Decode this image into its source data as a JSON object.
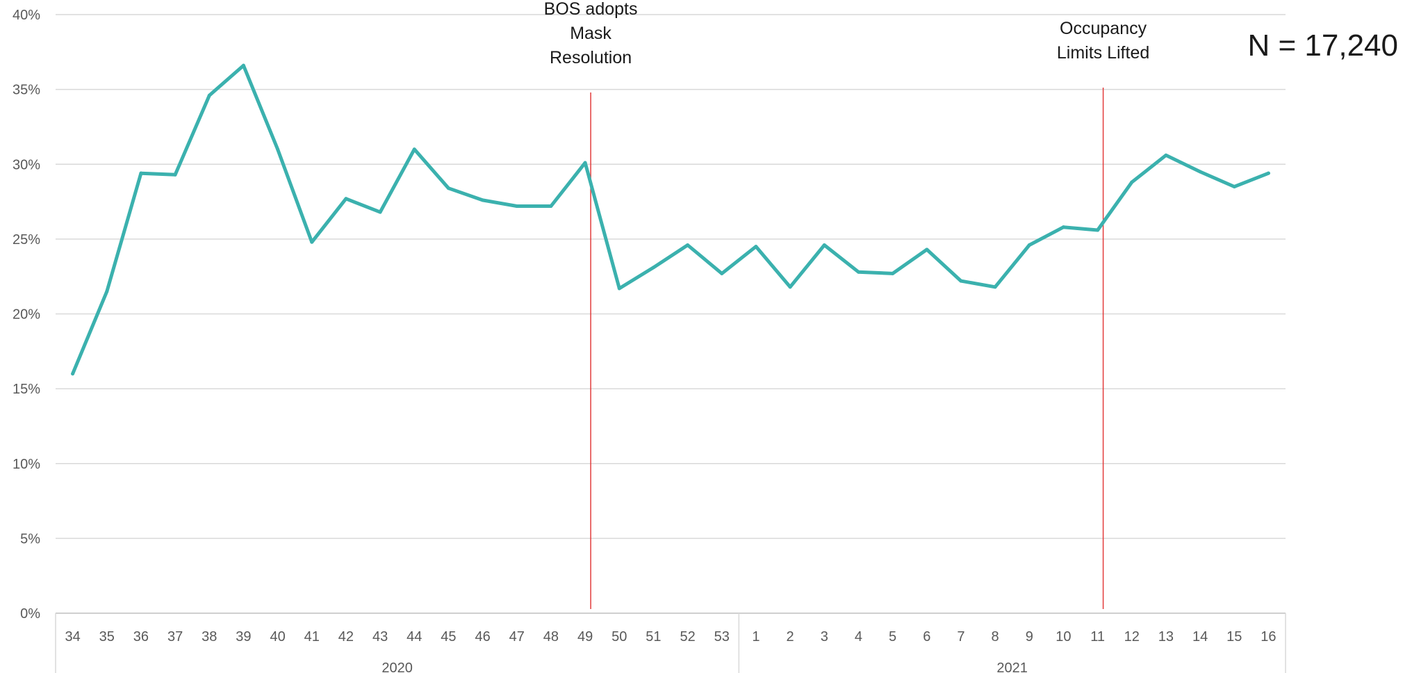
{
  "chart_data": {
    "type": "line",
    "y_ticks": [
      "0%",
      "5%",
      "10%",
      "15%",
      "20%",
      "25%",
      "30%",
      "35%",
      "40%"
    ],
    "ylim": [
      0,
      40
    ],
    "grid": true,
    "categories": [
      "34",
      "35",
      "36",
      "37",
      "38",
      "39",
      "40",
      "41",
      "42",
      "43",
      "44",
      "45",
      "46",
      "47",
      "48",
      "49",
      "50",
      "51",
      "52",
      "53",
      "1",
      "2",
      "3",
      "4",
      "5",
      "6",
      "7",
      "8",
      "9",
      "10",
      "11",
      "12",
      "13",
      "14",
      "15",
      "16"
    ],
    "year_groups": [
      {
        "label": "2020",
        "count": 20
      },
      {
        "label": "2021",
        "count": 16
      }
    ],
    "series": [
      {
        "color": "#3BB1AE",
        "values": [
          16.0,
          21.5,
          29.4,
          29.3,
          34.6,
          36.6,
          31.0,
          24.8,
          27.7,
          26.8,
          31.0,
          28.4,
          27.6,
          27.2,
          27.2,
          30.1,
          21.7,
          23.1,
          24.6,
          22.7,
          24.5,
          21.8,
          24.6,
          22.8,
          22.7,
          24.3,
          22.2,
          21.8,
          24.6,
          25.8,
          25.6,
          28.8,
          30.6,
          29.5,
          28.5,
          29.4
        ]
      }
    ],
    "annotations": [
      {
        "lines": [
          "BOS adopts",
          "Mask",
          "Resolution"
        ],
        "category_index": 15,
        "color": "#E23B3B"
      },
      {
        "lines": [
          "Occupancy",
          "Limits Lifted"
        ],
        "category_index": 30,
        "color": "#E23B3B"
      }
    ],
    "sample_size": "N = 17,240"
  }
}
